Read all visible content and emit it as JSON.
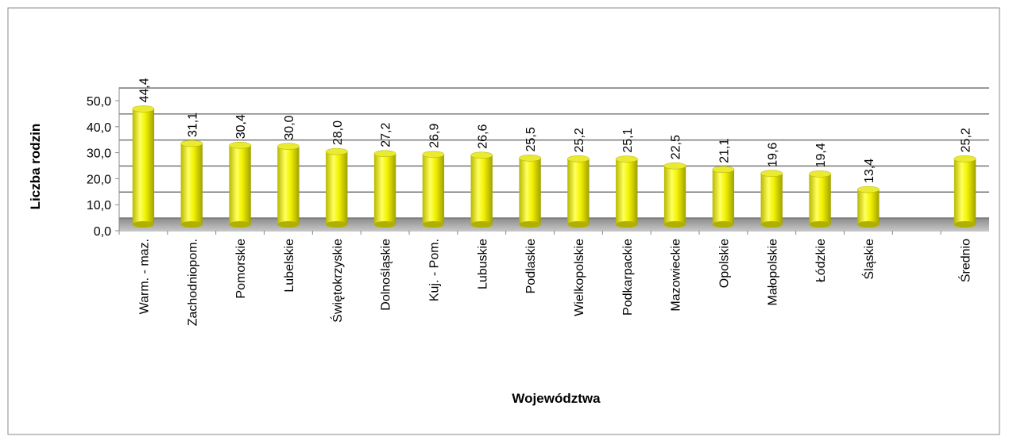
{
  "chart_data": {
    "type": "bar",
    "x_label": "Województwa",
    "y_label": "Liczba rodzin",
    "categories": [
      "Warm. - maz.",
      "Zachodniopom.",
      "Pomorskie",
      "Lubelskie",
      "Świętokrzyskie",
      "Dolnośląskie",
      "Kuj. - Pom.",
      "Lubuskie",
      "Podlaskie",
      "Wielkopolskie",
      "Podkarpackie",
      "Mazowieckie",
      "Opolskie",
      "Małopolskie",
      "Łódzkie",
      "Śląskie",
      null,
      "Średnio"
    ],
    "values": [
      44.4,
      31.1,
      30.4,
      30.0,
      28.0,
      27.2,
      26.9,
      26.6,
      25.5,
      25.2,
      25.1,
      22.5,
      21.1,
      19.6,
      19.4,
      13.4,
      null,
      25.2
    ],
    "value_labels": [
      "44,4",
      "31,1",
      "30,4",
      "30,0",
      "28,0",
      "27,2",
      "26,9",
      "26,6",
      "25,5",
      "25,2",
      "25,1",
      "22,5",
      "21,1",
      "19,6",
      "19,4",
      "13,4",
      null,
      "25,2"
    ],
    "color": "#f2f200",
    "ylim": [
      0,
      50
    ],
    "yticks": [
      {
        "value": 0,
        "label": "0,0"
      },
      {
        "value": 10,
        "label": "10,0"
      },
      {
        "value": 20,
        "label": "20,0"
      },
      {
        "value": 30,
        "label": "30,0"
      },
      {
        "value": 40,
        "label": "40,0"
      },
      {
        "value": 50,
        "label": "50,0"
      }
    ],
    "grid": true
  }
}
